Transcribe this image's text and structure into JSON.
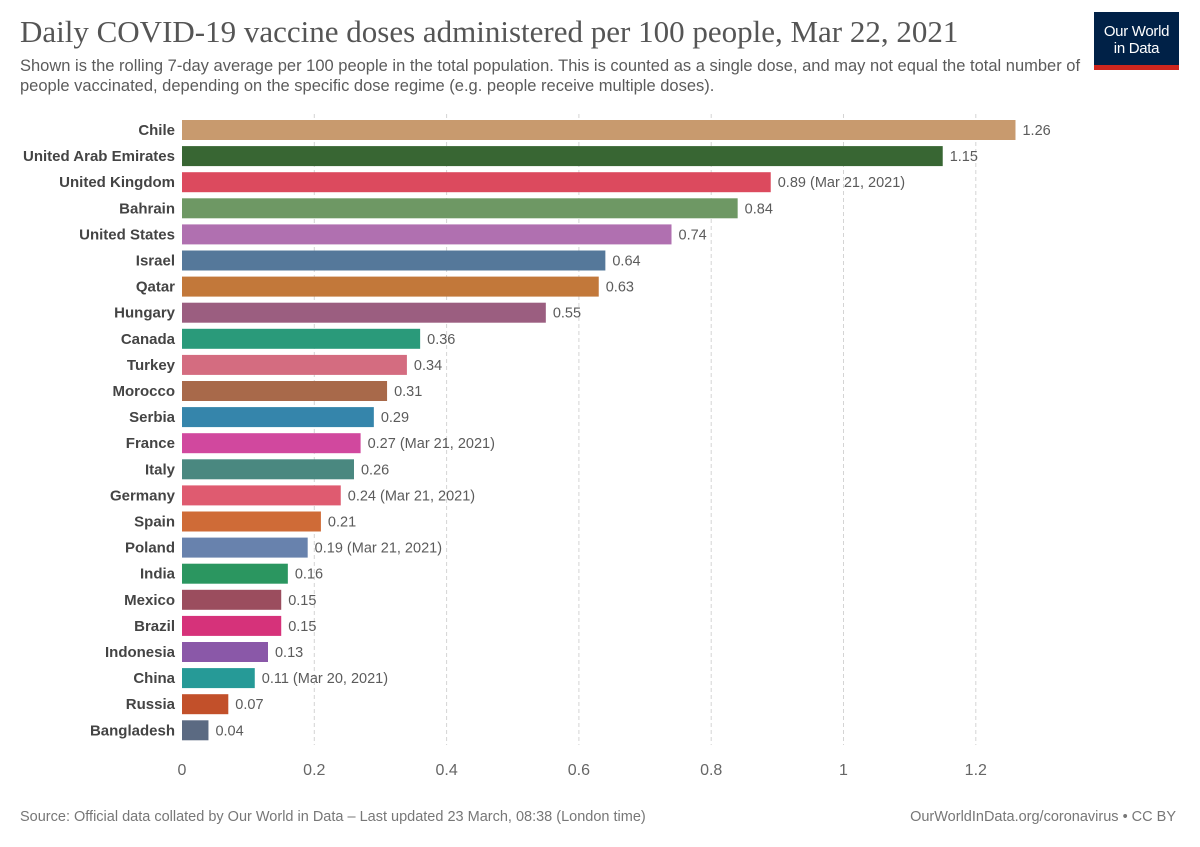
{
  "header": {
    "title": "Daily COVID-19 vaccine doses administered per 100 people, Mar 22, 2021",
    "subtitle": "Shown is the rolling 7-day average per 100 people in the total population. This is counted as a single dose, and may not equal the total number of people vaccinated, depending on the specific dose regime (e.g. people receive multiple doses).",
    "logo_line1": "Our World",
    "logo_line2": "in Data"
  },
  "footer": {
    "source": "Source: Official data collated by Our World in Data – Last updated 23 March, 08:38 (London time)",
    "license": "OurWorldInData.org/coronavirus • CC BY"
  },
  "colors": {
    "logo_background": "#002147",
    "logo_accent": "#ce261e"
  },
  "chart_data": {
    "type": "bar",
    "orientation": "horizontal",
    "xlim": [
      0,
      1.26
    ],
    "xticks": [
      0,
      0.2,
      0.4,
      0.6,
      0.8,
      1,
      1.2
    ],
    "xtick_labels": [
      "0",
      "0.2",
      "0.4",
      "0.6",
      "0.8",
      "1",
      "1.2"
    ],
    "grid": true,
    "bars": [
      {
        "label": "Chile",
        "value": 1.26,
        "value_label": "1.26",
        "color": "#c89a6e"
      },
      {
        "label": "United Arab Emirates",
        "value": 1.15,
        "value_label": "1.15",
        "color": "#386633"
      },
      {
        "label": "United Kingdom",
        "value": 0.89,
        "value_label": "0.89 (Mar 21, 2021)",
        "color": "#dc4a5e"
      },
      {
        "label": "Bahrain",
        "value": 0.84,
        "value_label": "0.84",
        "color": "#6e9864"
      },
      {
        "label": "United States",
        "value": 0.74,
        "value_label": "0.74",
        "color": "#b070b0"
      },
      {
        "label": "Israel",
        "value": 0.64,
        "value_label": "0.64",
        "color": "#55789a"
      },
      {
        "label": "Qatar",
        "value": 0.63,
        "value_label": "0.63",
        "color": "#c2783a"
      },
      {
        "label": "Hungary",
        "value": 0.55,
        "value_label": "0.55",
        "color": "#9b5e80"
      },
      {
        "label": "Canada",
        "value": 0.36,
        "value_label": "0.36",
        "color": "#2a9a7a"
      },
      {
        "label": "Turkey",
        "value": 0.34,
        "value_label": "0.34",
        "color": "#d46c80"
      },
      {
        "label": "Morocco",
        "value": 0.31,
        "value_label": "0.31",
        "color": "#a8694a"
      },
      {
        "label": "Serbia",
        "value": 0.29,
        "value_label": "0.29",
        "color": "#3585ab"
      },
      {
        "label": "France",
        "value": 0.27,
        "value_label": "0.27 (Mar 21, 2021)",
        "color": "#d1489e"
      },
      {
        "label": "Italy",
        "value": 0.26,
        "value_label": "0.26",
        "color": "#4a8880"
      },
      {
        "label": "Germany",
        "value": 0.24,
        "value_label": "0.24 (Mar 21, 2021)",
        "color": "#df5b70"
      },
      {
        "label": "Spain",
        "value": 0.21,
        "value_label": "0.21",
        "color": "#cf6b37"
      },
      {
        "label": "Poland",
        "value": 0.19,
        "value_label": "0.19 (Mar 21, 2021)",
        "color": "#6882ad"
      },
      {
        "label": "India",
        "value": 0.16,
        "value_label": "0.16",
        "color": "#2b9660"
      },
      {
        "label": "Mexico",
        "value": 0.15,
        "value_label": "0.15",
        "color": "#9b4d5e"
      },
      {
        "label": "Brazil",
        "value": 0.15,
        "value_label": "0.15",
        "color": "#d6327a"
      },
      {
        "label": "Indonesia",
        "value": 0.13,
        "value_label": "0.13",
        "color": "#8a58a8"
      },
      {
        "label": "China",
        "value": 0.11,
        "value_label": "0.11 (Mar 20, 2021)",
        "color": "#269a97"
      },
      {
        "label": "Russia",
        "value": 0.07,
        "value_label": "0.07",
        "color": "#c2502a"
      },
      {
        "label": "Bangladesh",
        "value": 0.04,
        "value_label": "0.04",
        "color": "#5b6a82"
      }
    ]
  }
}
